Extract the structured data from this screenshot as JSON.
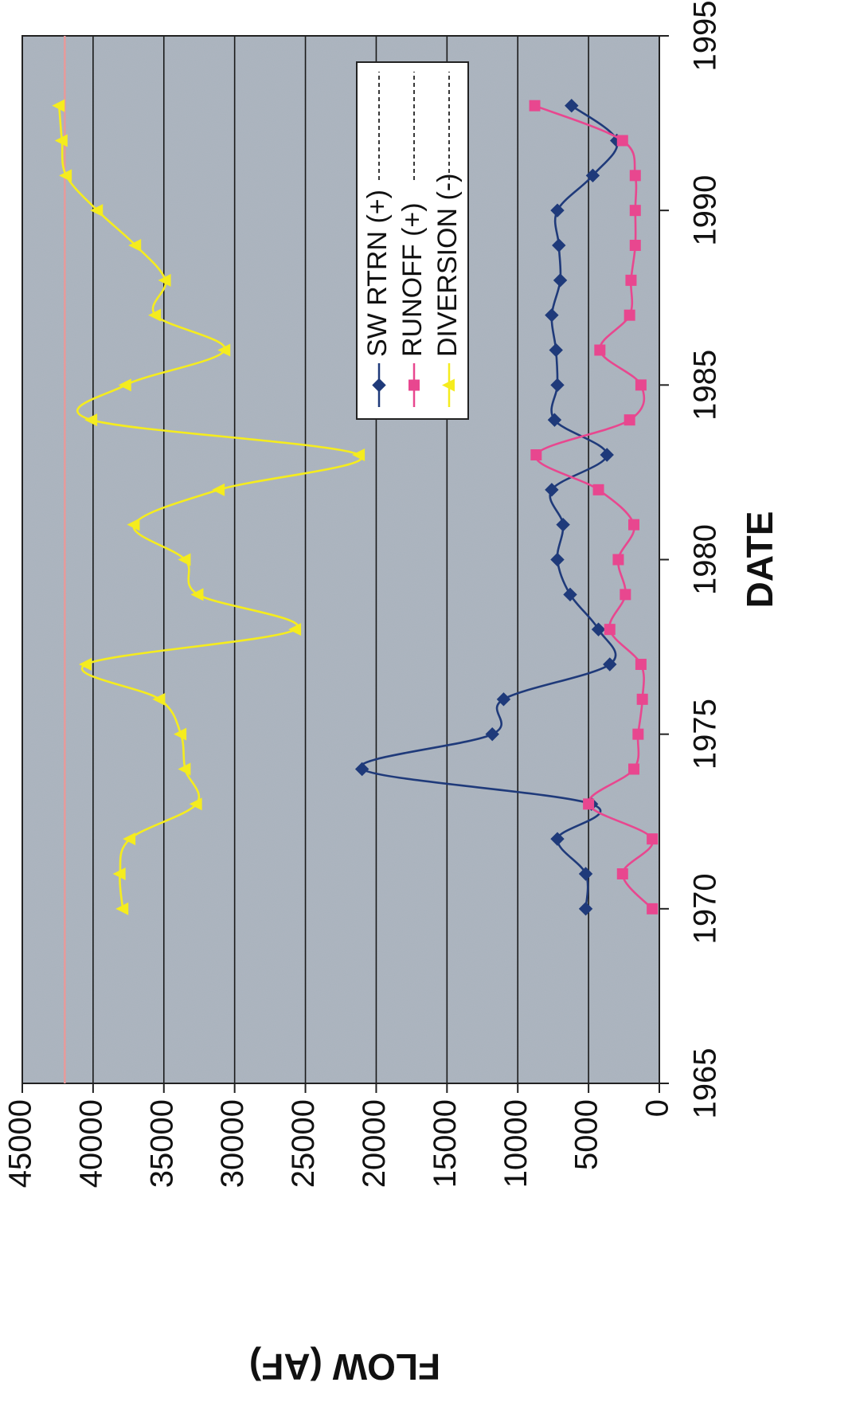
{
  "chart_data": {
    "type": "line",
    "title": "",
    "xlabel": "DATE",
    "ylabel": "FLOW (AF)",
    "xlim": [
      1965,
      1995
    ],
    "ylim": [
      0,
      45000
    ],
    "x_ticks": [
      1965,
      1970,
      1975,
      1980,
      1985,
      1990,
      1995
    ],
    "y_ticks": [
      0,
      5000,
      10000,
      15000,
      20000,
      25000,
      30000,
      35000,
      40000,
      45000
    ],
    "grid": true,
    "orientation": "rotated-90-clockwise",
    "legend": {
      "placement": "upper-right"
    },
    "reference_line": {
      "y": 42000,
      "color": "#e89a9a"
    },
    "series": [
      {
        "name": "SW RTRN (+)",
        "color": "#1f3a7a",
        "marker": "diamond",
        "x": [
          1970,
          1971,
          1972,
          1973,
          1974,
          1975,
          1976,
          1977,
          1978,
          1979,
          1980,
          1981,
          1982,
          1983,
          1984,
          1985,
          1986,
          1987,
          1988,
          1989,
          1990,
          1991,
          1992,
          1993
        ],
        "values": [
          5200,
          5200,
          7200,
          4800,
          21000,
          11800,
          11000,
          3500,
          4300,
          6300,
          7200,
          6800,
          7600,
          3700,
          7400,
          7200,
          7300,
          7600,
          7000,
          7100,
          7200,
          4700,
          3000,
          6200
        ]
      },
      {
        "name": "RUNOFF (+)",
        "color": "#e8478f",
        "marker": "square",
        "x": [
          1970,
          1971,
          1972,
          1973,
          1974,
          1975,
          1976,
          1977,
          1978,
          1979,
          1980,
          1981,
          1982,
          1983,
          1984,
          1985,
          1986,
          1987,
          1988,
          1989,
          1990,
          1991,
          1992,
          1993
        ],
        "values": [
          500,
          2600,
          500,
          5000,
          1800,
          1500,
          1200,
          1300,
          3500,
          2400,
          2900,
          1800,
          4300,
          8700,
          2100,
          1300,
          4200,
          2100,
          2000,
          1700,
          1700,
          1700,
          2600,
          8800
        ]
      },
      {
        "name": "DIVERSION (-)",
        "color": "#f5ec1e",
        "marker": "triangle",
        "x": [
          1970,
          1971,
          1972,
          1973,
          1974,
          1975,
          1976,
          1977,
          1978,
          1979,
          1980,
          1981,
          1982,
          1983,
          1984,
          1985,
          1986,
          1987,
          1988,
          1989,
          1990,
          1991,
          1992,
          1993
        ],
        "values": [
          37900,
          38100,
          37400,
          32700,
          33500,
          33800,
          35300,
          40500,
          25700,
          32600,
          33500,
          37100,
          31100,
          21200,
          40100,
          37700,
          30700,
          35600,
          34900,
          37000,
          39700,
          41900,
          42200,
          42400
        ]
      }
    ]
  }
}
